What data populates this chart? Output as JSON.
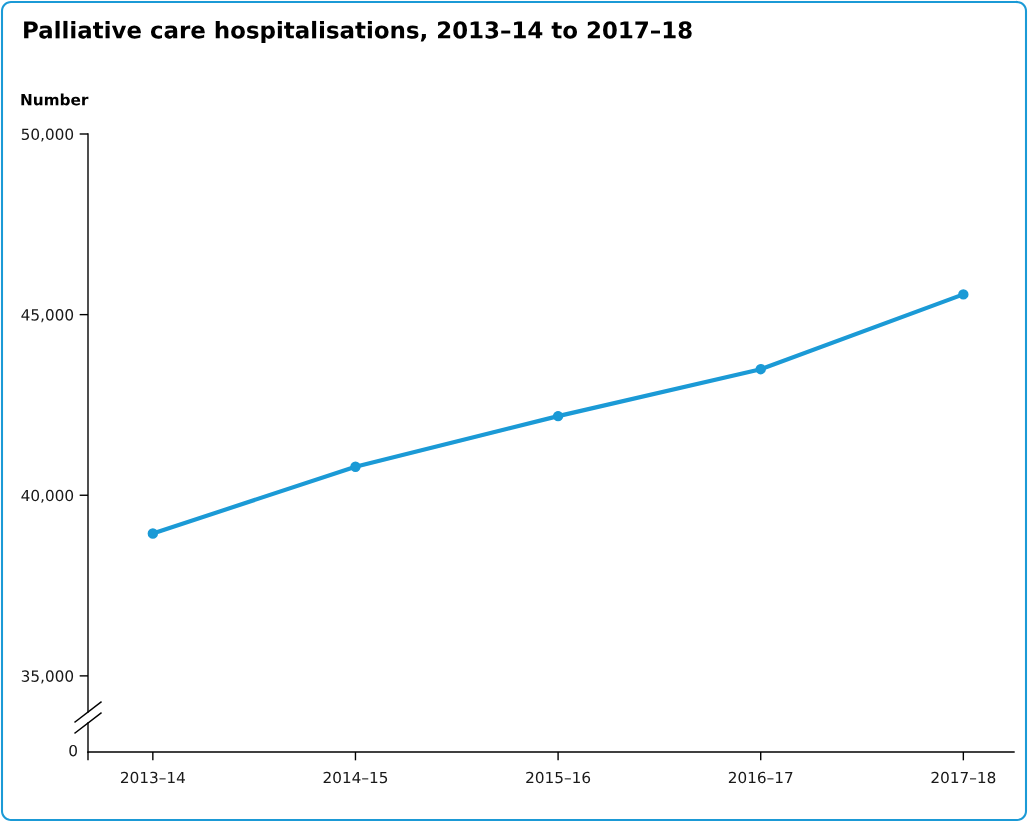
{
  "chart_data": {
    "type": "line",
    "title": "Palliative care hospitalisations, 2013–14 to 2017–18",
    "ylabel": "Number",
    "categories": [
      "2013–14",
      "2014–15",
      "2015–16",
      "2016–17",
      "2017–18"
    ],
    "series": [
      {
        "color": "#1b9ad6",
        "values": [
          38940,
          40790,
          42190,
          43490,
          45560
        ]
      }
    ],
    "ylim": [
      34000,
      50000
    ],
    "yticks": [
      {
        "value": 35000,
        "label": "35,000"
      },
      {
        "value": 40000,
        "label": "40,000"
      },
      {
        "value": 45000,
        "label": "45,000"
      },
      {
        "value": 50000,
        "label": "50,000"
      }
    ],
    "marker": "circle",
    "line_style": "solid",
    "annotations": [
      "0"
    ]
  }
}
